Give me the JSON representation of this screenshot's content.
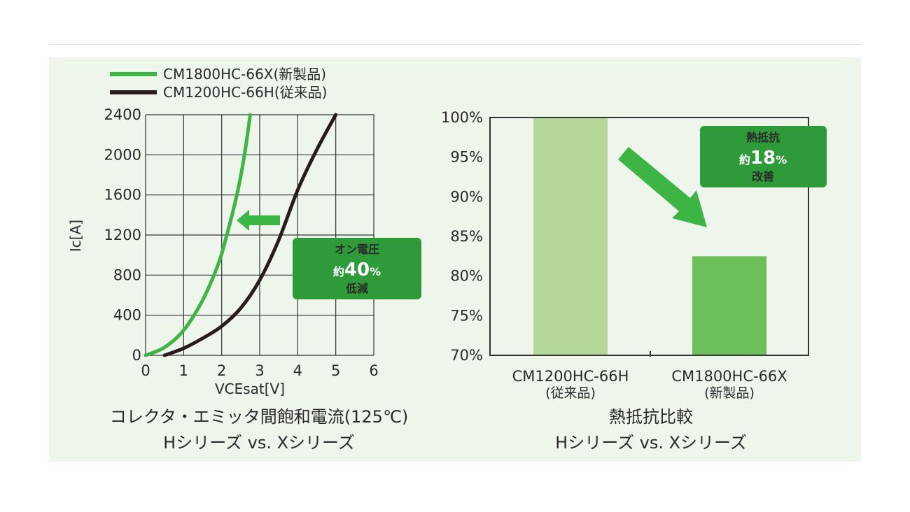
{
  "colors": {
    "new_series": "#3db544",
    "old_series": "#2a1c1c",
    "grid": "#333333",
    "panel_bg": "#eef6ec",
    "badge": "#2f9a3a",
    "bar_old": "#b3d89a",
    "bar_new": "#6cbf5a"
  },
  "left_caption": {
    "line1": "コレクタ・エミッタ間飽和電流(125℃)",
    "line2": "Hシリーズ vs. Xシリーズ"
  },
  "right_caption": {
    "line1": "熱抵抗比較",
    "line2": "Hシリーズ vs. Xシリーズ"
  },
  "left_badge": {
    "line1": "オン電圧",
    "prefix": "約",
    "value": "40",
    "unit": "%",
    "line3": "低減"
  },
  "right_badge": {
    "line1": "熱抵抗",
    "prefix": "約",
    "value": "18",
    "unit": "%",
    "line3": "改善"
  },
  "chart_data": [
    {
      "type": "line",
      "xlabel": "VCEsat[V]",
      "ylabel": "Ic[A]",
      "xlim": [
        0,
        6
      ],
      "ylim": [
        0,
        2400
      ],
      "x_ticks": [
        "0",
        "1",
        "2",
        "3",
        "4",
        "5",
        "6"
      ],
      "y_ticks": [
        "0",
        "400",
        "800",
        "1200",
        "1600",
        "2000",
        "2400"
      ],
      "grid": true,
      "legend_position": "top-left",
      "series": [
        {
          "name": "CM1800HC-66X(新製品)",
          "x": [
            0,
            0.5,
            1.0,
            1.5,
            1.9,
            2.1,
            2.4,
            2.6,
            2.75
          ],
          "y": [
            0,
            80,
            250,
            550,
            900,
            1150,
            1600,
            2000,
            2400
          ]
        },
        {
          "name": "CM1200HC-66H(従来品)",
          "x": [
            0.5,
            1.0,
            1.5,
            2.0,
            2.5,
            3.0,
            3.5,
            4.0,
            4.5,
            5.0
          ],
          "y": [
            0,
            70,
            170,
            290,
            470,
            750,
            1150,
            1650,
            2050,
            2400
          ]
        }
      ]
    },
    {
      "type": "bar",
      "categories": [
        "CM1200HC-66H",
        "CM1800HC-66X"
      ],
      "category_sublabels": [
        "(従来品)",
        "(新製品)"
      ],
      "values": [
        100,
        82.5
      ],
      "unit": "%",
      "ylim": [
        70,
        100
      ],
      "y_ticks": [
        "70%",
        "75%",
        "80%",
        "85%",
        "90%",
        "95%",
        "100%"
      ],
      "grid": false
    }
  ]
}
